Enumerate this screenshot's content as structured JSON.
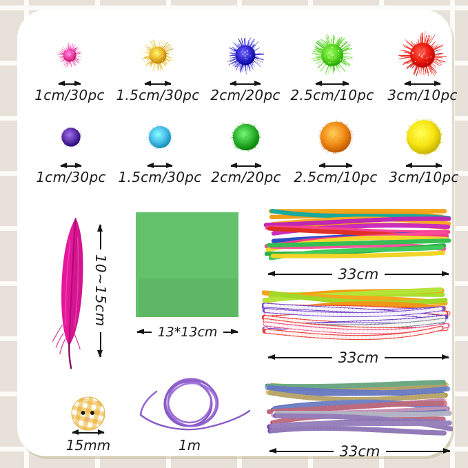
{
  "canvas": {
    "bg": "#e7e1d9",
    "grid_line": "#fcfbf8",
    "card_bg": "#ffffff"
  },
  "pom_rows": [
    {
      "type": "glitter",
      "items": [
        {
          "label": "1cm/30pc",
          "color": "#ed3fa0"
        },
        {
          "label": "1.5cm/30pc",
          "color": "#eab225"
        },
        {
          "label": "2cm/20pc",
          "color": "#2b23cc"
        },
        {
          "label": "2.5cm/10pc",
          "color": "#55d41c"
        },
        {
          "label": "3cm/10pc",
          "color": "#ea1a0e"
        }
      ]
    },
    {
      "type": "plain",
      "items": [
        {
          "label": "1cm/30pc",
          "color": "#5c2fa8"
        },
        {
          "label": "1.5cm/30pc",
          "color": "#45bce8"
        },
        {
          "label": "2cm/20pc",
          "color": "#2db32e"
        },
        {
          "label": "2.5cm/10pc",
          "color": "#f08a15"
        },
        {
          "label": "3cm/10pc",
          "color": "#f7e512"
        }
      ]
    }
  ],
  "feather": {
    "measure": "10~15cm",
    "color": "#e5169b"
  },
  "paper": {
    "measure": "13*13cm",
    "color": "#58bd60"
  },
  "bundles": [
    {
      "measure": "33cm",
      "texture": "smooth",
      "strands": [
        {
          "c": "#f4a71b"
        },
        {
          "c": "#f09d18"
        },
        {
          "c": "#1aa99c"
        },
        {
          "c": "#f6ab22"
        },
        {
          "c": "#ef9b17"
        },
        {
          "c": "#c026b2"
        },
        {
          "c": "#cb2dbd"
        },
        {
          "c": "#f64191"
        },
        {
          "c": "#2c4ec6"
        },
        {
          "c": "#e03026"
        },
        {
          "c": "#fa4a98"
        },
        {
          "c": "#f43e8e"
        },
        {
          "c": "#f5d62a"
        },
        {
          "c": "#fa549c"
        },
        {
          "c": "#35bf52"
        },
        {
          "c": "#2eb148"
        },
        {
          "c": "#41c95d"
        },
        {
          "c": "#f1d428"
        }
      ]
    },
    {
      "measure": "33cm",
      "texture": "striped",
      "strands": [
        {
          "c": "#aadf2e"
        },
        {
          "c": "#f59d17"
        },
        {
          "c": "#b5e438"
        },
        {
          "c": "#f5a61f"
        },
        {
          "c": "#a3d829"
        },
        {
          "c": "#f0971a"
        },
        {
          "c": "#e8453d",
          "s": true
        },
        {
          "c": "#e4403a",
          "s": true
        },
        {
          "c": "#7b4ec9",
          "s": true
        },
        {
          "c": "#7448c2",
          "s": true
        },
        {
          "c": "#8153cf",
          "s": true
        },
        {
          "c": "#e8453d",
          "s": true
        },
        {
          "c": "#6f44bd",
          "s": true
        },
        {
          "c": "#7b4ec9",
          "s": true
        },
        {
          "c": "#8a8f96",
          "s": true
        },
        {
          "c": "#e84a42",
          "s": true
        },
        {
          "c": "#ef5584",
          "s": true
        },
        {
          "c": "#e8403a",
          "s": true
        }
      ]
    },
    {
      "measure": "33cm",
      "texture": "tinsel",
      "strands": [
        {
          "c": "#2fa64d"
        },
        {
          "c": "#c9a21f"
        },
        {
          "c": "#35b055"
        },
        {
          "c": "#2d4fd2"
        },
        {
          "c": "#3558dd"
        },
        {
          "c": "#d4ad24"
        },
        {
          "c": "#2a49c8"
        },
        {
          "c": "#3e63e0"
        },
        {
          "c": "#e279b5"
        },
        {
          "c": "#d92f49"
        },
        {
          "c": "#e887bd"
        },
        {
          "c": "#2d4fd2"
        },
        {
          "c": "#de3a52"
        },
        {
          "c": "#c9c9da"
        },
        {
          "c": "#8a58c4"
        },
        {
          "c": "#7c4bb8"
        },
        {
          "c": "#9161cc"
        },
        {
          "c": "#8352c0"
        }
      ]
    }
  ],
  "button": {
    "measure": "15mm",
    "base": "#ffffff",
    "check": "#ecb12f",
    "hole": "#241a10"
  },
  "cord": {
    "measure": "1m",
    "color": "#9467ce"
  }
}
